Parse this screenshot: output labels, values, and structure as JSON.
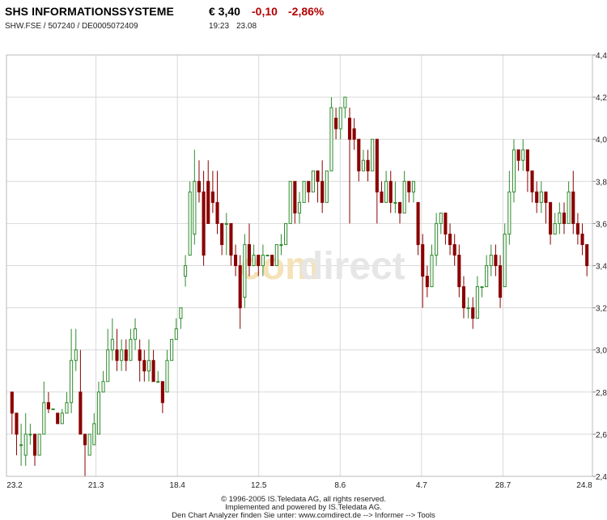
{
  "header": {
    "title": "SHS INFORMATIONSSYSTEME",
    "price": "€ 3,40",
    "change_abs": "-0,10",
    "change_pct": "-2,86%",
    "codes": "SHW.FSE  /  507240  /  DE0005072409",
    "time": "19:23",
    "date": "23.08"
  },
  "watermark": {
    "part1": "com",
    "part2": "direct"
  },
  "footer": {
    "line1": "© 1996-2005 IS.Teledata AG, all rights reserved.",
    "line2": "Implemented and powered by IS.Teledata AG.",
    "line3": "Den Chart Analyzer finden Sie unter: www.comdirect.de --> Informer --> Tools"
  },
  "colors": {
    "up": "#2e8b2e",
    "down": "#8b0000",
    "grid": "#d9d9d9",
    "neutral": "#b40000"
  },
  "chart_data": {
    "type": "candlestick",
    "x_tick_labels": [
      "23.2",
      "21.3",
      "18.4",
      "12.5",
      "8.6",
      "4.7",
      "28.7",
      "24.8"
    ],
    "y_tick_labels": [
      "2,4",
      "2,6",
      "2,8",
      "3,0",
      "3,2",
      "3,4",
      "3,6",
      "3,8",
      "4,0",
      "4,2",
      "4,4"
    ],
    "ylim": [
      2.4,
      4.4
    ],
    "y_axis_side": "right",
    "grid": true,
    "candles": [
      [
        2.8,
        2.7,
        2.8,
        2.6
      ],
      [
        2.7,
        2.6,
        2.7,
        2.5
      ],
      [
        2.55,
        2.55,
        2.65,
        2.45
      ],
      [
        2.5,
        2.6,
        2.7,
        2.45
      ],
      [
        2.6,
        2.6,
        2.65,
        2.55
      ],
      [
        2.6,
        2.5,
        2.6,
        2.45
      ],
      [
        2.5,
        2.6,
        2.6,
        2.5
      ],
      [
        2.6,
        2.75,
        2.85,
        2.6
      ],
      [
        2.75,
        2.72,
        2.8,
        2.7
      ],
      [
        2.72,
        2.72,
        2.72,
        2.72
      ],
      [
        2.7,
        2.65,
        2.7,
        2.65
      ],
      [
        2.65,
        2.7,
        2.72,
        2.65
      ],
      [
        2.7,
        2.75,
        2.8,
        2.7
      ],
      [
        2.75,
        2.95,
        3.1,
        2.7
      ],
      [
        2.95,
        3.0,
        3.1,
        2.9
      ],
      [
        2.8,
        2.6,
        3.0,
        2.6
      ],
      [
        2.6,
        2.55,
        2.6,
        2.4
      ],
      [
        2.5,
        2.6,
        2.6,
        2.5
      ],
      [
        2.55,
        2.65,
        2.7,
        2.55
      ],
      [
        2.6,
        2.8,
        2.85,
        2.6
      ],
      [
        2.8,
        2.85,
        2.9,
        2.8
      ],
      [
        2.85,
        3.0,
        3.1,
        2.85
      ],
      [
        3.0,
        3.05,
        3.15,
        2.95
      ],
      [
        3.0,
        2.95,
        3.1,
        2.9
      ],
      [
        2.95,
        3.0,
        3.05,
        2.9
      ],
      [
        3.0,
        2.95,
        3.05,
        2.9
      ],
      [
        2.95,
        3.05,
        3.1,
        2.95
      ],
      [
        3.05,
        3.1,
        3.15,
        3.0
      ],
      [
        3.0,
        2.95,
        3.05,
        2.85
      ],
      [
        2.95,
        2.9,
        3.0,
        2.85
      ],
      [
        2.9,
        2.95,
        3.05,
        2.85
      ],
      [
        2.95,
        2.85,
        3.0,
        2.85
      ],
      [
        2.85,
        2.85,
        2.9,
        2.85
      ],
      [
        2.85,
        2.75,
        2.8,
        2.7
      ],
      [
        2.8,
        2.95,
        3.0,
        2.8
      ],
      [
        2.95,
        3.05,
        3.05,
        2.95
      ],
      [
        3.05,
        3.1,
        3.15,
        3.05
      ],
      [
        3.15,
        3.2,
        3.2,
        3.1
      ],
      [
        3.35,
        3.4,
        3.45,
        3.3
      ],
      [
        3.45,
        3.75,
        3.8,
        3.45
      ],
      [
        3.55,
        3.8,
        3.95,
        3.5
      ],
      [
        3.8,
        3.75,
        3.9,
        3.7
      ],
      [
        3.75,
        3.45,
        3.85,
        3.4
      ],
      [
        3.8,
        3.6,
        3.9,
        3.6
      ],
      [
        3.75,
        3.7,
        3.85,
        3.65
      ],
      [
        3.7,
        3.6,
        3.85,
        3.55
      ],
      [
        3.6,
        3.5,
        3.6,
        3.45
      ],
      [
        3.6,
        3.6,
        3.65,
        3.45
      ],
      [
        3.6,
        3.45,
        3.6,
        3.4
      ],
      [
        3.45,
        3.4,
        3.5,
        3.35
      ],
      [
        3.4,
        3.2,
        3.45,
        3.1
      ],
      [
        3.25,
        3.5,
        3.55,
        3.2
      ],
      [
        3.5,
        3.4,
        3.6,
        3.35
      ],
      [
        3.4,
        3.45,
        3.5,
        3.4
      ],
      [
        3.45,
        3.4,
        3.45,
        3.35
      ],
      [
        3.4,
        3.45,
        3.5,
        3.35
      ],
      [
        3.45,
        3.45,
        3.45,
        3.45
      ],
      [
        3.45,
        3.4,
        3.45,
        3.4
      ],
      [
        3.4,
        3.5,
        3.5,
        3.4
      ],
      [
        3.5,
        3.5,
        3.55,
        3.45
      ],
      [
        3.5,
        3.6,
        3.6,
        3.5
      ],
      [
        3.6,
        3.8,
        3.8,
        3.6
      ],
      [
        3.8,
        3.65,
        3.8,
        3.6
      ],
      [
        3.65,
        3.7,
        3.75,
        3.6
      ],
      [
        3.7,
        3.8,
        3.8,
        3.7
      ],
      [
        3.8,
        3.75,
        3.8,
        3.7
      ],
      [
        3.75,
        3.85,
        3.85,
        3.75
      ],
      [
        3.85,
        3.8,
        3.85,
        3.7
      ],
      [
        3.8,
        3.7,
        3.9,
        3.65
      ],
      [
        3.7,
        3.85,
        3.85,
        3.7
      ],
      [
        3.85,
        4.15,
        4.2,
        3.85
      ],
      [
        4.1,
        4.05,
        4.15,
        4.0
      ],
      [
        4.05,
        4.15,
        4.15,
        4.0
      ],
      [
        4.15,
        4.2,
        4.2,
        4.1
      ],
      [
        4.1,
        4.0,
        4.15,
        3.6
      ],
      [
        4.05,
        4.0,
        4.1,
        3.95
      ],
      [
        4.0,
        3.85,
        4.0,
        3.8
      ],
      [
        3.85,
        3.9,
        3.95,
        3.85
      ],
      [
        3.9,
        3.85,
        3.95,
        3.8
      ],
      [
        3.85,
        4.0,
        4.0,
        3.85
      ],
      [
        4.0,
        3.75,
        4.0,
        3.6
      ],
      [
        3.75,
        3.7,
        3.8,
        3.7
      ],
      [
        3.7,
        3.8,
        3.85,
        3.7
      ],
      [
        3.8,
        3.7,
        3.85,
        3.65
      ],
      [
        3.7,
        3.7,
        3.8,
        3.65
      ],
      [
        3.7,
        3.65,
        3.7,
        3.6
      ],
      [
        3.65,
        3.8,
        3.85,
        3.65
      ],
      [
        3.8,
        3.75,
        3.8,
        3.7
      ],
      [
        3.75,
        3.8,
        3.8,
        3.7
      ],
      [
        3.7,
        3.5,
        3.7,
        3.45
      ],
      [
        3.5,
        3.35,
        3.55,
        3.2
      ],
      [
        3.35,
        3.3,
        3.4,
        3.25
      ],
      [
        3.3,
        3.45,
        3.5,
        3.3
      ],
      [
        3.45,
        3.6,
        3.65,
        3.4
      ],
      [
        3.6,
        3.65,
        3.65,
        3.55
      ],
      [
        3.65,
        3.55,
        3.65,
        3.5
      ],
      [
        3.55,
        3.5,
        3.6,
        3.45
      ],
      [
        3.5,
        3.45,
        3.55,
        3.4
      ],
      [
        3.45,
        3.3,
        3.5,
        3.25
      ],
      [
        3.3,
        3.2,
        3.35,
        3.15
      ],
      [
        3.2,
        3.2,
        3.25,
        3.15
      ],
      [
        3.2,
        3.15,
        3.25,
        3.1
      ],
      [
        3.15,
        3.3,
        3.35,
        3.15
      ],
      [
        3.3,
        3.3,
        3.3,
        3.25
      ],
      [
        3.3,
        3.4,
        3.45,
        3.3
      ],
      [
        3.4,
        3.45,
        3.5,
        3.35
      ],
      [
        3.45,
        3.4,
        3.5,
        3.35
      ],
      [
        3.4,
        3.25,
        3.45,
        3.2
      ],
      [
        3.3,
        3.55,
        3.6,
        3.3
      ],
      [
        3.55,
        3.75,
        3.85,
        3.5
      ],
      [
        3.75,
        3.95,
        4.0,
        3.7
      ],
      [
        3.95,
        3.9,
        3.95,
        3.85
      ],
      [
        3.9,
        3.95,
        4.0,
        3.85
      ],
      [
        3.95,
        3.85,
        3.95,
        3.75
      ],
      [
        3.85,
        3.75,
        3.85,
        3.7
      ],
      [
        3.75,
        3.7,
        3.8,
        3.65
      ],
      [
        3.7,
        3.75,
        3.8,
        3.65
      ],
      [
        3.75,
        3.7,
        3.75,
        3.6
      ],
      [
        3.7,
        3.55,
        3.7,
        3.5
      ],
      [
        3.55,
        3.6,
        3.65,
        3.55
      ],
      [
        3.6,
        3.65,
        3.7,
        3.55
      ],
      [
        3.65,
        3.6,
        3.7,
        3.55
      ],
      [
        3.6,
        3.75,
        3.8,
        3.6
      ],
      [
        3.75,
        3.6,
        3.85,
        3.55
      ],
      [
        3.6,
        3.55,
        3.65,
        3.5
      ],
      [
        3.55,
        3.5,
        3.6,
        3.45
      ],
      [
        3.5,
        3.4,
        3.5,
        3.35
      ]
    ]
  }
}
